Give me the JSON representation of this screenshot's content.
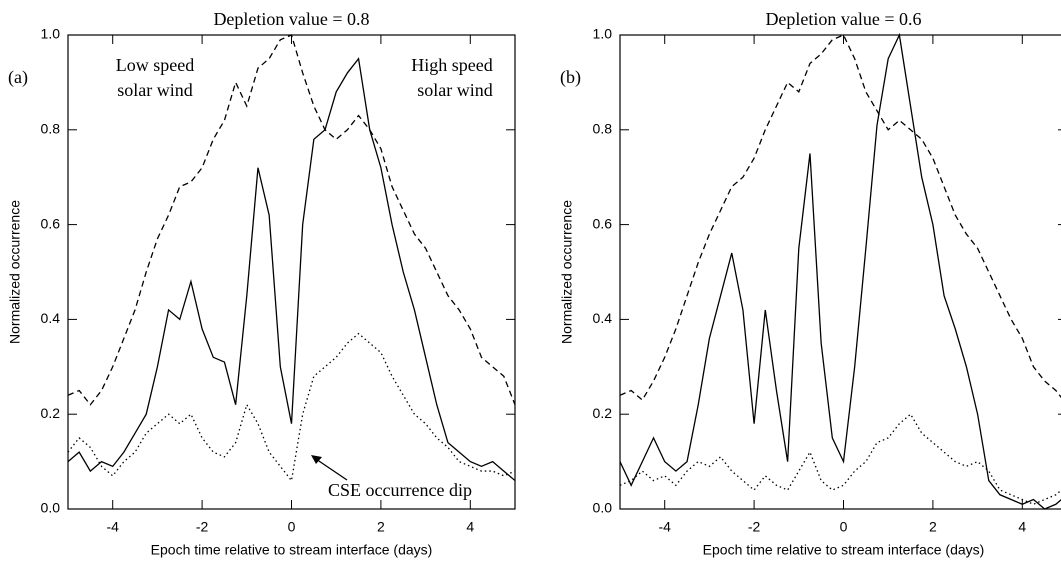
{
  "chart_data": [
    {
      "type": "line",
      "title": "Depletion value = 0.8",
      "panel_label": "(a)",
      "x_label": "Epoch time relative to stream interface (days)",
      "y_label": "Normalized occurrence",
      "annotations": [
        "Low speed",
        "solar wind",
        "High speed",
        "solar wind",
        "CSE occurrence dip"
      ],
      "xlim": [
        -5,
        5
      ],
      "xticks": [
        -4,
        -2,
        0,
        2,
        4
      ],
      "ylim": [
        0,
        1
      ],
      "yticks": [
        {
          "value": 0,
          "label": "0.0"
        },
        {
          "value": 0.2,
          "label": "0.2"
        },
        {
          "value": 0.4,
          "label": "0.4"
        },
        {
          "value": 0.6,
          "label": "0.6"
        },
        {
          "value": 0.8,
          "label": "0.8"
        },
        {
          "value": 1,
          "label": "1.0"
        }
      ],
      "x": [
        -5,
        -4.75,
        -4.5,
        -4.25,
        -4,
        -3.75,
        -3.5,
        -3.25,
        -3,
        -2.75,
        -2.5,
        -2.25,
        -2,
        -1.75,
        -1.5,
        -1.25,
        -1,
        -0.75,
        -0.5,
        -0.25,
        0,
        0.25,
        0.5,
        0.75,
        1,
        1.25,
        1.5,
        1.75,
        2,
        2.25,
        2.5,
        2.75,
        3,
        3.25,
        3.5,
        3.75,
        4,
        4.25,
        4.5,
        4.75,
        5
      ],
      "series": [
        {
          "color": "#000000",
          "dash": "solid",
          "values": [
            0.1,
            0.12,
            0.08,
            0.1,
            0.09,
            0.12,
            0.16,
            0.2,
            0.3,
            0.42,
            0.4,
            0.48,
            0.38,
            0.32,
            0.31,
            0.22,
            0.45,
            0.72,
            0.62,
            0.3,
            0.18,
            0.6,
            0.78,
            0.8,
            0.88,
            0.92,
            0.95,
            0.8,
            0.72,
            0.6,
            0.5,
            0.42,
            0.32,
            0.22,
            0.14,
            0.12,
            0.1,
            0.09,
            0.1,
            0.08,
            0.06
          ]
        },
        {
          "color": "#000000",
          "dash": "dashed",
          "values": [
            0.24,
            0.25,
            0.22,
            0.25,
            0.3,
            0.36,
            0.42,
            0.5,
            0.57,
            0.62,
            0.68,
            0.69,
            0.72,
            0.78,
            0.82,
            0.9,
            0.85,
            0.93,
            0.95,
            0.99,
            1.0,
            0.92,
            0.85,
            0.8,
            0.78,
            0.8,
            0.83,
            0.8,
            0.76,
            0.68,
            0.63,
            0.58,
            0.55,
            0.5,
            0.45,
            0.42,
            0.38,
            0.32,
            0.3,
            0.28,
            0.22
          ]
        },
        {
          "color": "#000000",
          "dash": "dotted",
          "values": [
            0.12,
            0.15,
            0.13,
            0.09,
            0.07,
            0.1,
            0.12,
            0.16,
            0.18,
            0.2,
            0.18,
            0.2,
            0.15,
            0.12,
            0.11,
            0.14,
            0.22,
            0.18,
            0.12,
            0.09,
            0.06,
            0.2,
            0.28,
            0.3,
            0.32,
            0.35,
            0.37,
            0.35,
            0.33,
            0.28,
            0.24,
            0.2,
            0.18,
            0.15,
            0.13,
            0.1,
            0.09,
            0.08,
            0.08,
            0.07,
            0.08
          ]
        }
      ]
    },
    {
      "type": "line",
      "title": "Depletion value = 0.6",
      "panel_label": "(b)",
      "x_label": "Epoch time relative to stream interface (days)",
      "y_label": "Normalized occurrence",
      "xlim": [
        -5,
        5
      ],
      "xticks": [
        -4,
        -2,
        0,
        2,
        4
      ],
      "ylim": [
        0,
        1
      ],
      "yticks": [
        {
          "value": 0,
          "label": "0.0"
        },
        {
          "value": 0.2,
          "label": "0.2"
        },
        {
          "value": 0.4,
          "label": "0.4"
        },
        {
          "value": 0.6,
          "label": "0.6"
        },
        {
          "value": 0.8,
          "label": "0.8"
        },
        {
          "value": 1,
          "label": "1.0"
        }
      ],
      "x": [
        -5,
        -4.75,
        -4.5,
        -4.25,
        -4,
        -3.75,
        -3.5,
        -3.25,
        -3,
        -2.75,
        -2.5,
        -2.25,
        -2,
        -1.75,
        -1.5,
        -1.25,
        -1,
        -0.75,
        -0.5,
        -0.25,
        0,
        0.25,
        0.5,
        0.75,
        1,
        1.25,
        1.5,
        1.75,
        2,
        2.25,
        2.5,
        2.75,
        3,
        3.25,
        3.5,
        3.75,
        4,
        4.25,
        4.5,
        4.75,
        5
      ],
      "series": [
        {
          "color": "#000000",
          "dash": "solid",
          "values": [
            0.1,
            0.05,
            0.1,
            0.15,
            0.1,
            0.08,
            0.1,
            0.22,
            0.36,
            0.45,
            0.54,
            0.42,
            0.18,
            0.42,
            0.25,
            0.1,
            0.55,
            0.75,
            0.35,
            0.15,
            0.1,
            0.3,
            0.55,
            0.81,
            0.95,
            1.0,
            0.85,
            0.7,
            0.6,
            0.45,
            0.38,
            0.3,
            0.2,
            0.06,
            0.03,
            0.02,
            0.01,
            0.02,
            0.0,
            0.01,
            0.03
          ]
        },
        {
          "color": "#000000",
          "dash": "dashed",
          "values": [
            0.24,
            0.25,
            0.23,
            0.27,
            0.32,
            0.38,
            0.45,
            0.52,
            0.58,
            0.63,
            0.68,
            0.7,
            0.74,
            0.8,
            0.85,
            0.9,
            0.88,
            0.94,
            0.96,
            0.99,
            1.0,
            0.95,
            0.88,
            0.84,
            0.8,
            0.82,
            0.8,
            0.78,
            0.74,
            0.68,
            0.62,
            0.58,
            0.55,
            0.5,
            0.45,
            0.4,
            0.36,
            0.3,
            0.27,
            0.25,
            0.22
          ]
        },
        {
          "color": "#000000",
          "dash": "dotted",
          "values": [
            0.05,
            0.06,
            0.08,
            0.06,
            0.07,
            0.05,
            0.08,
            0.1,
            0.09,
            0.11,
            0.08,
            0.06,
            0.04,
            0.07,
            0.05,
            0.04,
            0.08,
            0.12,
            0.06,
            0.04,
            0.05,
            0.08,
            0.1,
            0.14,
            0.15,
            0.18,
            0.2,
            0.16,
            0.14,
            0.12,
            0.1,
            0.09,
            0.1,
            0.08,
            0.04,
            0.03,
            0.02,
            0.01,
            0.02,
            0.03,
            0.05
          ]
        }
      ]
    }
  ]
}
